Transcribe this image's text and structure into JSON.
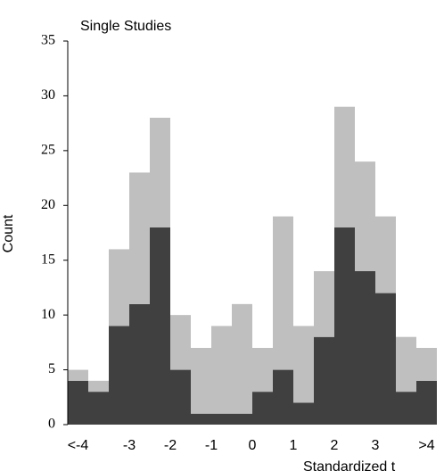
{
  "chart_data": {
    "type": "histogram",
    "title": "Single Studies",
    "y_label": "Count",
    "x_label": "Standardized t",
    "bins": [
      -4.5,
      -4,
      -3.5,
      -3,
      -2.5,
      -2,
      -1.5,
      -1,
      -0.5,
      0,
      0.5,
      1,
      1.5,
      2,
      2.5,
      3,
      3.5,
      4,
      4.5
    ],
    "series": [
      {
        "color": "#404040",
        "values": [
          4,
          3,
          9,
          11,
          18,
          5,
          1,
          1,
          1,
          3,
          5,
          2,
          8,
          18,
          14,
          12,
          3,
          4
        ]
      },
      {
        "color": "#bfbfbf",
        "values": [
          1,
          1,
          7,
          12,
          10,
          5,
          6,
          8,
          10,
          4,
          14,
          7,
          6,
          11,
          10,
          7,
          5,
          3
        ]
      }
    ],
    "stacked": true,
    "xlim": [
      -4.5,
      4.5
    ],
    "xticks": [
      {
        "value": -4.25,
        "label": "<-4"
      },
      -3,
      -2,
      -1,
      0,
      1,
      2,
      3,
      {
        "value": 4.25,
        "label": ">4"
      }
    ],
    "ylim": [
      0,
      35
    ],
    "yticks": [
      0,
      5,
      10,
      15,
      20,
      25,
      30,
      35
    ]
  }
}
